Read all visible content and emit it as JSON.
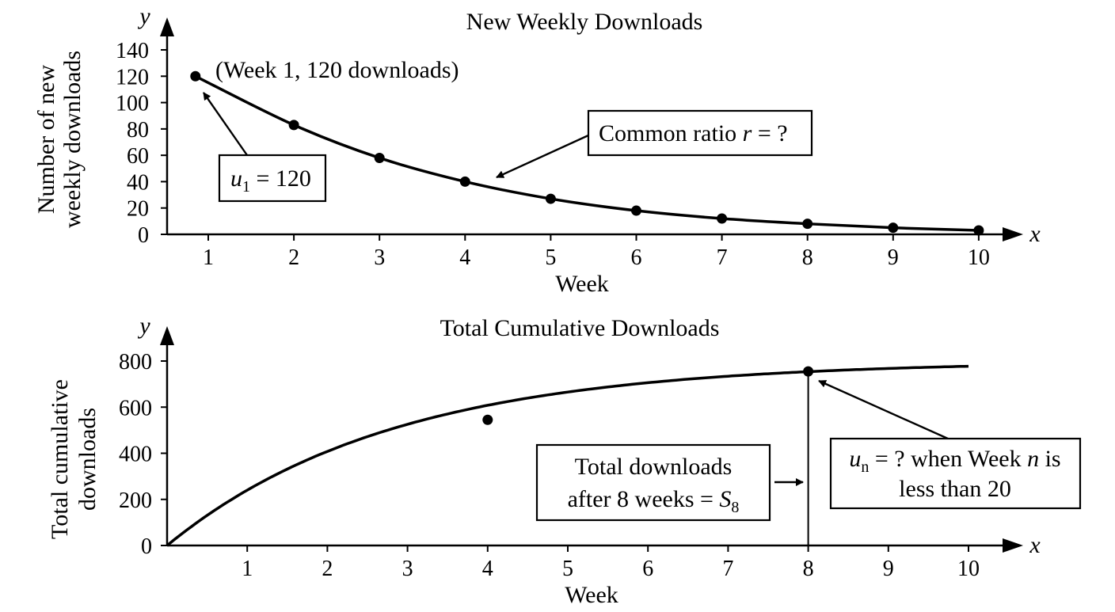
{
  "chart_data": [
    {
      "type": "line",
      "title": "New Weekly Downloads",
      "xlabel": "Week",
      "ylabel_lines": [
        "Number of new",
        "weekly downloads"
      ],
      "x_var": "x",
      "y_var": "y",
      "xticks": [
        "1",
        "2",
        "3",
        "4",
        "5",
        "6",
        "7",
        "8",
        "9",
        "10"
      ],
      "yticks": [
        "0",
        "20",
        "40",
        "60",
        "80",
        "100",
        "120",
        "140"
      ],
      "xlim": [
        0.5,
        10.5
      ],
      "ylim": [
        0,
        150
      ],
      "series": [
        {
          "x": [
            0.85,
            2,
            3,
            4,
            5,
            6,
            7,
            8,
            9,
            10
          ],
          "values": [
            120,
            83,
            58,
            40,
            27,
            18,
            12,
            8,
            5,
            3
          ]
        }
      ],
      "annotations": {
        "point_label": "(Week 1, 120 downloads)",
        "u1": {
          "var": "u",
          "sub": "1",
          "rest": " = 120"
        },
        "ratio": {
          "pre": "Common ratio ",
          "var": "r",
          "post": " = ?"
        }
      }
    },
    {
      "type": "line",
      "title": "Total Cumulative Downloads",
      "xlabel": "Week",
      "ylabel_lines": [
        "Total cumulative",
        "downloads"
      ],
      "x_var": "x",
      "y_var": "y",
      "xticks": [
        "1",
        "2",
        "3",
        "4",
        "5",
        "6",
        "7",
        "8",
        "9",
        "10"
      ],
      "yticks": [
        "0",
        "200",
        "400",
        "600",
        "800"
      ],
      "xlim": [
        0,
        10.5
      ],
      "ylim": [
        0,
        850
      ],
      "series": [
        {
          "curve": {
            "limit": 800,
            "ratio": 0.7,
            "x_end": 10
          },
          "points": [
            {
              "x": 4,
              "y": 545
            },
            {
              "x": 8,
              "y": 755
            }
          ]
        }
      ],
      "annotations": {
        "s8": {
          "line1": "Total downloads",
          "line2_pre": "after 8 weeks = ",
          "var": "S",
          "sub": "8"
        },
        "un": {
          "var": "u",
          "sub": "n",
          "line1_post": " = ? when Week ",
          "var2": "n",
          "line1_end": " is",
          "line2": "less than 20"
        }
      }
    }
  ]
}
